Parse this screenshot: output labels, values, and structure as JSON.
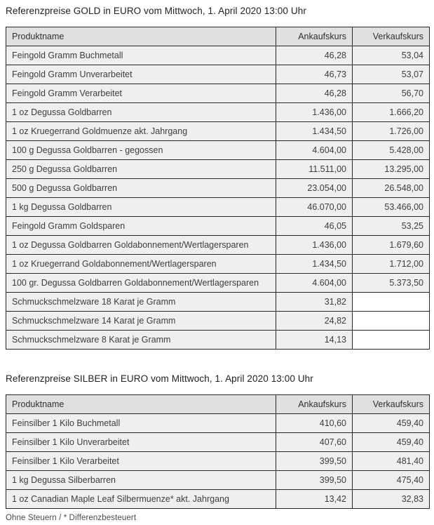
{
  "gold": {
    "title": "Referenzpreise GOLD in EURO vom Mittwoch, 1. April 2020 13:00 Uhr",
    "columns": [
      "Produktname",
      "Ankaufskurs",
      "Verkaufskurs"
    ],
    "rows": [
      [
        "Feingold Gramm Buchmetall",
        "46,28",
        "53,04"
      ],
      [
        "Feingold Gramm Unverarbeitet",
        "46,73",
        "53,07"
      ],
      [
        "Feingold Gramm Verarbeitet",
        "46,28",
        "56,70"
      ],
      [
        "1 oz Degussa Goldbarren",
        "1.436,00",
        "1.666,20"
      ],
      [
        "1 oz Kruegerrand Goldmuenze akt. Jahrgang",
        "1.434,50",
        "1.726,00"
      ],
      [
        "100 g Degussa Goldbarren - gegossen",
        "4.604,00",
        "5.428,00"
      ],
      [
        "250 g Degussa Goldbarren",
        "11.511,00",
        "13.295,00"
      ],
      [
        "500 g Degussa Goldbarren",
        "23.054,00",
        "26.548,00"
      ],
      [
        "1 kg Degussa Goldbarren",
        "46.070,00",
        "53.466,00"
      ],
      [
        "Feingold Gramm Goldsparen",
        "46,05",
        "53,25"
      ],
      [
        "1 oz Degussa Goldbarren Goldabonnement/Wertlagersparen",
        "1.436,00",
        "1.679,60"
      ],
      [
        "1 oz Kruegerrand Goldabonnement/Wertlagersparen",
        "1.434,50",
        "1.712,00"
      ],
      [
        "100 gr. Degussa Goldbarren Goldabonnement/Wertlagersparen",
        "4.604,00",
        "5.373,50"
      ],
      [
        "Schmuckschmelzware 18 Karat je Gramm",
        "31,82",
        ""
      ],
      [
        "Schmuckschmelzware 14 Karat je Gramm",
        "24,82",
        ""
      ],
      [
        "Schmuckschmelzware 8 Karat je Gramm",
        "14,13",
        ""
      ]
    ]
  },
  "silver": {
    "title": "Referenzpreise SILBER in EURO vom Mittwoch, 1. April 2020 13:00 Uhr",
    "columns": [
      "Produktname",
      "Ankaufskurs",
      "Verkaufskurs"
    ],
    "rows": [
      [
        "Feinsilber 1 Kilo Buchmetall",
        "410,60",
        "459,40"
      ],
      [
        "Feinsilber 1 Kilo Unverarbeitet",
        "407,60",
        "459,40"
      ],
      [
        "Feinsilber 1 Kilo Verarbeitet",
        "399,50",
        "481,40"
      ],
      [
        "1 kg Degussa Silberbarren",
        "399,50",
        "475,40"
      ],
      [
        "1 oz Canadian Maple Leaf Silbermuenze* akt. Jahrgang",
        "13,42",
        "32,83"
      ]
    ]
  },
  "footer": {
    "note": "Ohne Steuern / * Differenzbesteuert"
  },
  "colors": {
    "header_bg": "#e0e0e0",
    "row_bg": "#efefef",
    "empty_cell_bg": "#ffffff",
    "border": "#262626",
    "title_text": "#222222",
    "cell_text": "#3d3d3d",
    "footer_text": "#4a4a4a"
  }
}
